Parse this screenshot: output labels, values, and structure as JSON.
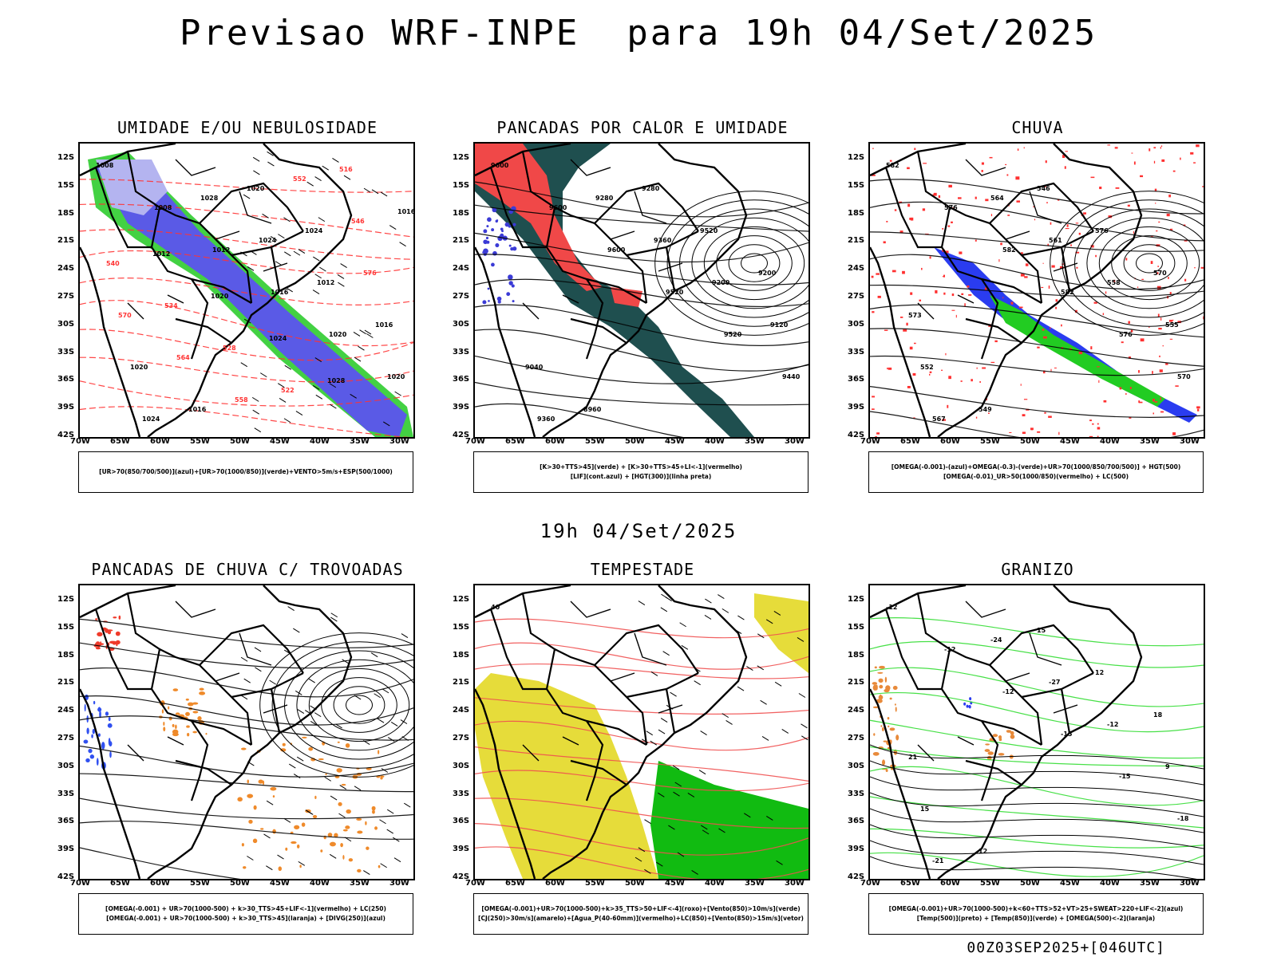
{
  "header": {
    "title": "Previsao WRF-INPE  para 19h 04/Set/2025",
    "mid_time": "19h 04/Set/2025",
    "footer": "00Z03SEP2025+[046UTC]"
  },
  "axes": {
    "lat_labels": [
      "12S",
      "15S",
      "18S",
      "21S",
      "24S",
      "27S",
      "30S",
      "33S",
      "36S",
      "39S",
      "42S"
    ],
    "lon_labels": [
      "70W",
      "65W",
      "60W",
      "55W",
      "50W",
      "45W",
      "40W",
      "35W",
      "30W"
    ]
  },
  "panels": [
    {
      "title": "UMIDADE E/OU NEBULOSIDADE",
      "legend": [
        "[UR>70(850/700/500)](azul)+[UR>70(1000/850)](verde)+VENTO>5m/s+ESP(500/1000)"
      ],
      "contour_labels": [
        "1008",
        "1008",
        "1012",
        "1016",
        "1020",
        "1020",
        "1024",
        "1028",
        "1024",
        "1012",
        "1016",
        "1020",
        "1016",
        "1020",
        "1024",
        "576",
        "570",
        "564",
        "558",
        "552",
        "546",
        "540",
        "534",
        "528",
        "522",
        "516",
        "1016",
        "1012",
        "1020",
        "1024",
        "1028"
      ],
      "colors": {
        "blue": "#5a5ae6",
        "lightblue": "#b4b4f0",
        "green": "#2fcc2f",
        "red": "#ff3333"
      }
    },
    {
      "title": "PANCADAS POR CALOR E UMIDADE",
      "legend": [
        "[K>30+TTS>45](verde) + [K>30+TTS>45+LI<-1](vermelho)",
        "[LIF](cont.azul) + [HGT(300)](linha preta)"
      ],
      "contour_labels": [
        "9600",
        "9600",
        "9600",
        "9520",
        "9520",
        "9440",
        "9360",
        "9280",
        "9360",
        "9200",
        "9120",
        "9040",
        "8960",
        "9280",
        "9520",
        "9200"
      ],
      "colors": {
        "teal": "#1f4f4f",
        "red": "#f04848",
        "blue": "#3b3bd6"
      }
    },
    {
      "title": "CHUVA",
      "legend": [
        "[OMEGA(-0.001)-(azul)+OMEGA(-0.3)-(verde)+UR>70(1000/850/700/500)] + HGT(500)",
        "[OMEGA(-0.01)_UR>50(1000/850)(vermelho) + LC(500)"
      ],
      "contour_labels": [
        "582",
        "576",
        "582",
        "582",
        "576",
        "570",
        "567",
        "564",
        "561",
        "558",
        "555",
        "552",
        "549",
        "546",
        "576",
        "570",
        "573"
      ],
      "colors": {
        "red": "#ff3030",
        "blue": "#2a3cf0",
        "green": "#22cc22"
      }
    },
    {
      "title": "PANCADAS DE CHUVA C/ TROVOADAS",
      "legend": [
        "[OMEGA(-0.001) + UR>70(1000-500) + k>30_TTS>45+LIF<-1](vermelho) + LC(250)",
        "[OMEGA(-0.001) + UR>70(1000-500) + k>30_TTS>45](laranja) + [DIVG(250)](azul)"
      ],
      "contour_labels": [],
      "colors": {
        "red": "#f03a2a",
        "orange": "#ef8a2a",
        "blue": "#3050f0"
      }
    },
    {
      "title": "TEMPESTADE",
      "legend": [
        "[OMEGA(-0.001)+UR>70(1000-500)+k>35_TTS>50+LIF<-4](roxo)+[Vento(850)>10m/s](verde)",
        "[CJ(250)>30m/s](amarelo)+[Agua_P(40-60mm)](vermelho)+LC(850)+[Vento(850)>15m/s](vetor)"
      ],
      "contour_labels": [
        "40"
      ],
      "colors": {
        "yellow": "#e6dc3a",
        "green": "#11bb11",
        "red": "#f05050"
      }
    },
    {
      "title": "GRANIZO",
      "legend": [
        "[OMEGA(-0.001)+UR>70(1000-500)+k<60+TTS>52+VT>25+SWEAT>220+LIF<-2](azul)",
        "[Temp(500)](preto) + [Temp(850)](verde) + [OMEGA(500)<-2](laranja)"
      ],
      "contour_labels": [
        "-12",
        "-12",
        "-12",
        "-15",
        "-15",
        "-18",
        "-21",
        "-24",
        "-27",
        "-12",
        "9",
        "15",
        "12",
        "15",
        "12",
        "18",
        "21"
      ],
      "colors": {
        "green": "#33dd33",
        "orange": "#e88a3a",
        "blue": "#2a3cf0"
      }
    }
  ]
}
